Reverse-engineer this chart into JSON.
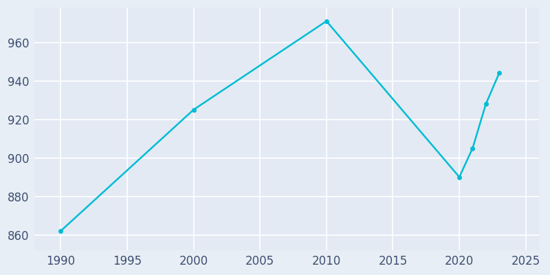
{
  "years": [
    1990,
    2000,
    2010,
    2020,
    2021,
    2022,
    2023
  ],
  "population": [
    862,
    925,
    971,
    890,
    905,
    928,
    944
  ],
  "line_color": "#00BCD4",
  "marker": "o",
  "marker_size": 4,
  "line_width": 1.8,
  "fig_bg_color": "#E8EEF5",
  "plot_bg_color": "#E3EAF4",
  "grid_color": "#ffffff",
  "xlabel": "",
  "ylabel": "",
  "xlim": [
    1988,
    2026
  ],
  "ylim": [
    852,
    978
  ],
  "xticks": [
    1990,
    1995,
    2000,
    2005,
    2010,
    2015,
    2020,
    2025
  ],
  "yticks": [
    860,
    880,
    900,
    920,
    940,
    960
  ],
  "tick_color": "#3D4F72",
  "tick_fontsize": 12
}
